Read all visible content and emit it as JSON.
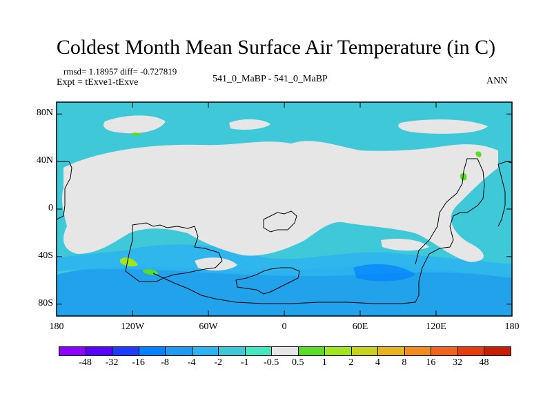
{
  "chart_data": {
    "type": "contour_map",
    "title": "Coldest Month Mean Surface Air Temperature (in C)",
    "stats_line": "rmsd= 1.18957 diff= -0.727819",
    "experiment_line": "Expt = tExve1-tExve",
    "case_label": "541_0_MaBP - 541_0_MaBP",
    "season": "ANN",
    "y_ticks": [
      "80N",
      "40N",
      "0",
      "40S",
      "80S"
    ],
    "y_values": [
      80,
      40,
      0,
      -40,
      -80
    ],
    "x_ticks": [
      "180",
      "120W",
      "60W",
      "0",
      "60E",
      "120E",
      "180"
    ],
    "x_values": [
      -180,
      -120,
      -60,
      0,
      60,
      120,
      180
    ],
    "xlim": [
      -180,
      180
    ],
    "ylim": [
      -90,
      90
    ],
    "colorbar": {
      "labels": [
        "-48",
        "-32",
        "-16",
        "-8",
        "-4",
        "-2",
        "-1",
        "-0.5",
        "0.5",
        "1",
        "2",
        "4",
        "8",
        "16",
        "32",
        "48"
      ],
      "colors": [
        "#8c00ff",
        "#5a00ff",
        "#1e3cff",
        "#0082ff",
        "#1e9bf0",
        "#2db4f0",
        "#3fc8d8",
        "#46e6be",
        "#e6e6e6",
        "#5adc28",
        "#a0e61e",
        "#c8d21e",
        "#e6b41e",
        "#f08c1e",
        "#f0641e",
        "#e63c0a",
        "#c81e00"
      ]
    }
  }
}
